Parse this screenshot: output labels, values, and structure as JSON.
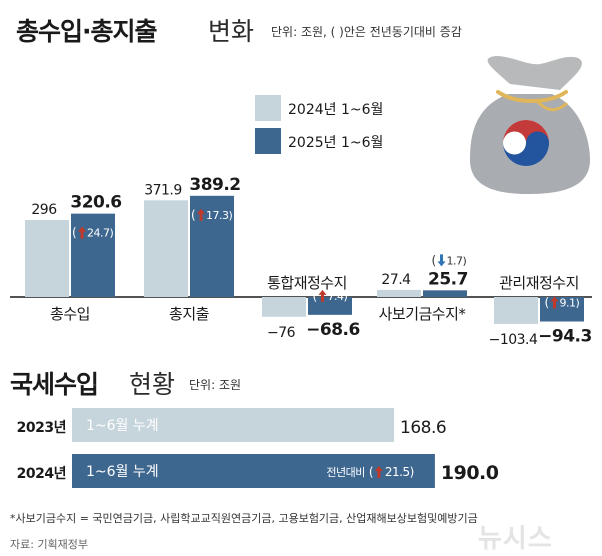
{
  "header": {
    "title_bold": "총수입·총지출",
    "title_light": "변화",
    "unit_note": "단위: 조원, ( )안은 전년동기대비 증감"
  },
  "legend": [
    {
      "label": "2024년 1~6월",
      "color": "#c6d4dc"
    },
    {
      "label": "2025년 1~6월",
      "color": "#3e6790"
    }
  ],
  "chart_data": [
    {
      "type": "bar",
      "title": "총수입·총지출 변화",
      "unit": "조원",
      "categories": [
        "총수입",
        "총지출",
        "통합재정수지",
        "사보기금수지*",
        "관리재정수지"
      ],
      "series": [
        {
          "name": "2024년 1~6월",
          "values": [
            296,
            371.9,
            -76,
            27.4,
            -103.4
          ],
          "labels": [
            "296",
            "371.9",
            "−76",
            "27.4",
            "−103.4"
          ]
        },
        {
          "name": "2025년 1~6월",
          "values": [
            320.6,
            389.2,
            -68.6,
            25.7,
            -94.3
          ],
          "labels": [
            "320.6",
            "389.2",
            "−68.6",
            "25.7",
            "−94.3"
          ]
        }
      ],
      "changes": [
        {
          "direction": "up",
          "value": "24.7"
        },
        {
          "direction": "up",
          "value": "17.3"
        },
        {
          "direction": "up",
          "value": "7.4"
        },
        {
          "direction": "down",
          "value": "1.7"
        },
        {
          "direction": "up",
          "value": "9.1"
        }
      ]
    },
    {
      "type": "bar",
      "title": "국세수입 현황",
      "unit": "조원",
      "categories": [
        "2023년",
        "2024년"
      ],
      "bar_labels": [
        "1~6월 누계",
        "1~6월 누계"
      ],
      "values": [
        168.6,
        190.0
      ],
      "value_labels": [
        "168.6",
        "190.0"
      ],
      "colors": [
        "#c6d4dc",
        "#3e6790"
      ],
      "change": {
        "prefix": "전년대비",
        "direction": "up",
        "value": "21.5"
      }
    }
  ],
  "section2": {
    "title_bold": "국세수입",
    "title_light": "현황",
    "unit_note": "단위: 조원"
  },
  "icon": "money-bag-taegeuk-icon",
  "colors": {
    "light": "#c6d4dc",
    "dark": "#3e6790",
    "arrow_up": "#c0392b",
    "arrow_down": "#2f74b5"
  },
  "footnote": "*사보기금수지 = 국민연금기금, 사립학교교직원연금기금, 고용보험기금, 산업재해보상보험및예방기금",
  "source": "자료: 기획재정부",
  "watermark": "뉴시스"
}
